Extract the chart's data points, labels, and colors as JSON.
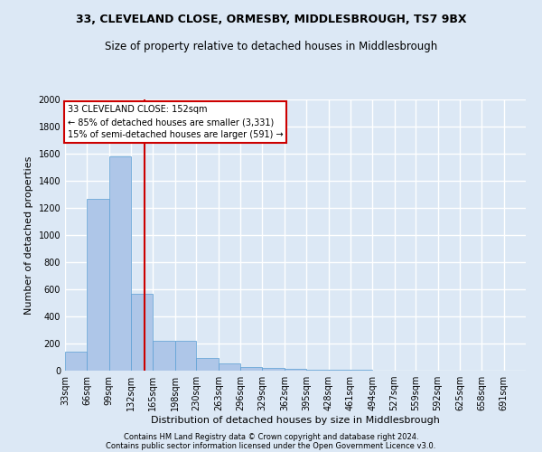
{
  "title1": "33, CLEVELAND CLOSE, ORMESBY, MIDDLESBROUGH, TS7 9BX",
  "title2": "Size of property relative to detached houses in Middlesbrough",
  "xlabel": "Distribution of detached houses by size in Middlesbrough",
  "ylabel": "Number of detached properties",
  "footer1": "Contains HM Land Registry data © Crown copyright and database right 2024.",
  "footer2": "Contains public sector information licensed under the Open Government Licence v3.0.",
  "annotation_line1": "33 CLEVELAND CLOSE: 152sqm",
  "annotation_line2": "← 85% of detached houses are smaller (3,331)",
  "annotation_line3": "15% of semi-detached houses are larger (591) →",
  "property_size": 152,
  "bar_color": "#aec6e8",
  "bar_edge_color": "#5a9fd4",
  "vline_color": "#cc0000",
  "vline_x": 152,
  "categories": [
    "33sqm",
    "66sqm",
    "99sqm",
    "132sqm",
    "165sqm",
    "198sqm",
    "230sqm",
    "263sqm",
    "296sqm",
    "329sqm",
    "362sqm",
    "395sqm",
    "428sqm",
    "461sqm",
    "494sqm",
    "527sqm",
    "559sqm",
    "592sqm",
    "625sqm",
    "658sqm",
    "691sqm"
  ],
  "bin_edges": [
    33,
    66,
    99,
    132,
    165,
    198,
    230,
    263,
    296,
    329,
    362,
    395,
    428,
    461,
    494,
    527,
    559,
    592,
    625,
    658,
    691,
    724
  ],
  "bar_heights": [
    140,
    1270,
    1580,
    570,
    220,
    220,
    96,
    55,
    30,
    20,
    15,
    10,
    6,
    4,
    3,
    2,
    2,
    1,
    1,
    1,
    1
  ],
  "ylim": [
    0,
    2000
  ],
  "yticks": [
    0,
    200,
    400,
    600,
    800,
    1000,
    1200,
    1400,
    1600,
    1800,
    2000
  ],
  "background_color": "#dce8f5",
  "grid_color": "#ffffff",
  "annotation_box_color": "#ffffff",
  "annotation_box_edge": "#cc0000",
  "title_fontsize": 9,
  "subtitle_fontsize": 8.5,
  "axis_label_fontsize": 8,
  "tick_fontsize": 7,
  "footer_fontsize": 6
}
